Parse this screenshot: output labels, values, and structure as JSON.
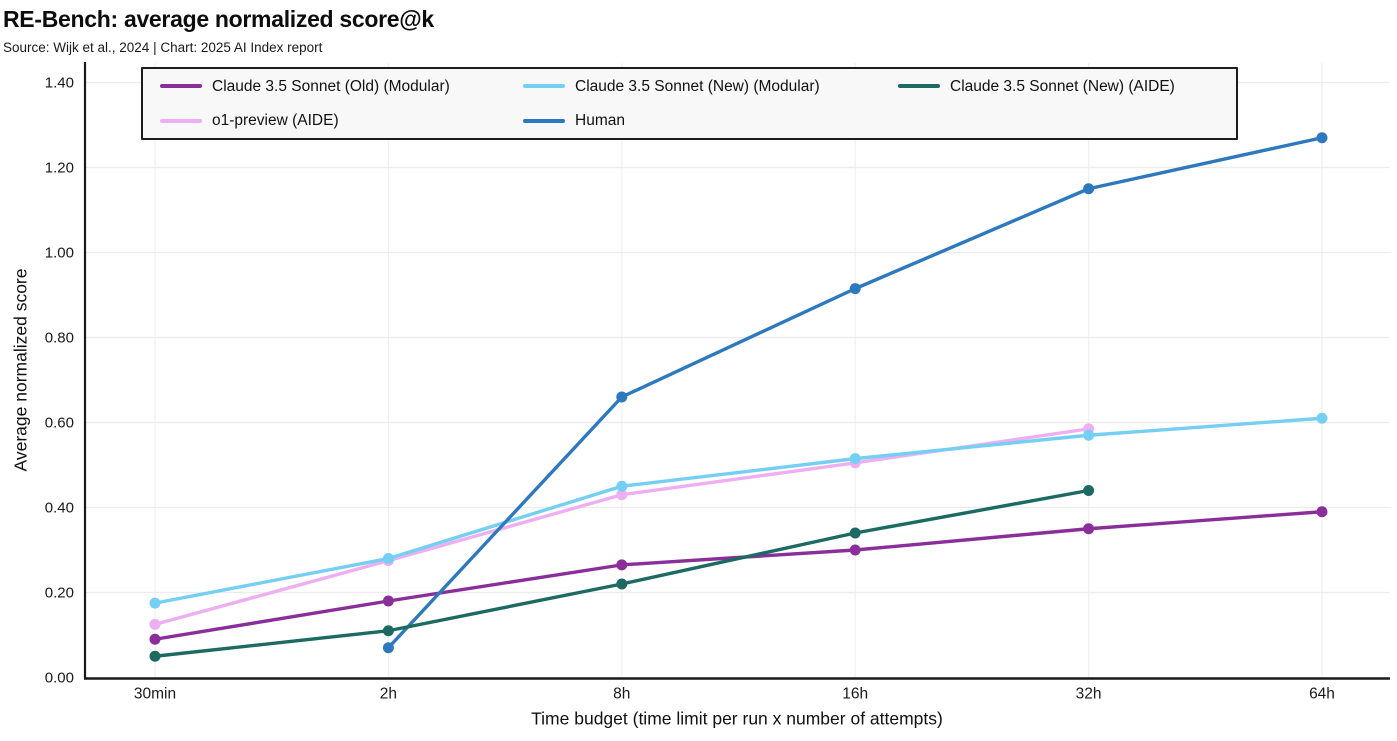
{
  "page": {
    "background": "#ffffff"
  },
  "header": {
    "title": "RE-Bench: average normalized score@k",
    "subtitle": "Source: Wijk et al., 2024 | Chart: 2025 AI Index report"
  },
  "chart_data": {
    "type": "line",
    "title": "RE-Bench: average normalized score@k",
    "categories": [
      "30min",
      "2h",
      "8h",
      "16h",
      "32h",
      "64h"
    ],
    "series": [
      {
        "name": "Claude 3.5 Sonnet (Old) (Modular)",
        "color": "#8a2f9a",
        "values": [
          0.09,
          0.18,
          0.265,
          0.3,
          0.35,
          0.39
        ]
      },
      {
        "name": "o1-preview (AIDE)",
        "color": "#edaff2",
        "values": [
          0.125,
          0.275,
          0.43,
          0.505,
          0.585,
          null
        ]
      },
      {
        "name": "Claude 3.5 Sonnet (New) (Modular)",
        "color": "#74cff2",
        "values": [
          0.175,
          0.28,
          0.45,
          0.515,
          0.57,
          0.61
        ]
      },
      {
        "name": "Human",
        "color": "#2e79bd",
        "values": [
          null,
          0.07,
          0.66,
          0.915,
          1.15,
          1.27
        ]
      },
      {
        "name": "Claude 3.5 Sonnet (New) (AIDE)",
        "color": "#1d6a62",
        "values": [
          0.05,
          0.11,
          0.22,
          0.34,
          0.44,
          null
        ]
      }
    ],
    "xlabel": "Time budget (time limit per run x number of attempts)",
    "ylabel": "Average normalized score",
    "ylim": [
      0,
      1.4
    ],
    "yticks": [
      "0.00",
      "0.20",
      "0.40",
      "0.60",
      "0.80",
      "1.00",
      "1.20",
      "1.40"
    ],
    "grid": true,
    "legend": {
      "position": "top-left-inside",
      "columns": 3,
      "fill": "column-major"
    },
    "style": {
      "grid_color_h": "#ececec",
      "grid_color_v": "#f1f1f1",
      "spine_color": "#1a1a1a",
      "tick_label_color": "#1a1a1a"
    }
  }
}
